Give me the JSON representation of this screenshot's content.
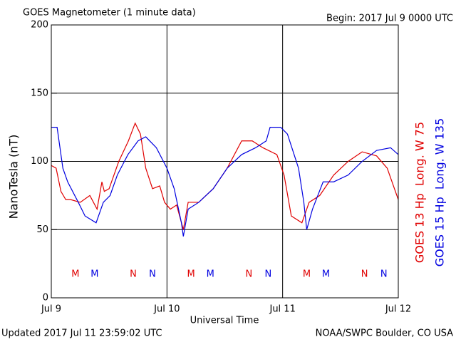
{
  "chart_data": {
    "type": "line",
    "title": "GOES Magnetometer (1 minute data)",
    "subtitle": "Begin:  2017 Jul 9 0000 UTC",
    "x_label": "Universal Time",
    "y_label": "NanoTesla (nT)",
    "footer_left": "Updated 2017 Jul 11 23:59:02 UTC",
    "footer_right": "NOAA/SWPC Boulder, CO USA",
    "xlim": [
      0,
      72
    ],
    "xticks": [
      {
        "value": 0,
        "label": "Jul 9"
      },
      {
        "value": 24,
        "label": "Jul 10"
      },
      {
        "value": 48,
        "label": "Jul 11"
      },
      {
        "value": 72,
        "label": "Jul 12"
      }
    ],
    "ylim": [
      0,
      200
    ],
    "yticks": [
      0,
      50,
      100,
      150,
      200
    ],
    "grid": true,
    "series": [
      {
        "name": "GOES 13 Hp  Long. W 75",
        "color": "#e00000",
        "x": [
          0,
          1,
          2,
          3,
          4,
          6,
          8,
          9.5,
          10.5,
          11,
          12,
          14,
          16,
          17.4,
          18.5,
          19.6,
          21,
          22.5,
          23.5,
          24.7,
          26,
          27.4,
          28.4,
          30.6,
          33.6,
          36.5,
          39.5,
          41.7,
          43.9,
          46.8,
          48.3,
          49.8,
          52,
          53.5,
          55.7,
          58.6,
          61.6,
          64.5,
          67.5,
          69.7,
          72
        ],
        "values": [
          97,
          95,
          78,
          72,
          72,
          70,
          75,
          65,
          85,
          78,
          80,
          100,
          115,
          128,
          120,
          95,
          80,
          82,
          70,
          65,
          68,
          50,
          70,
          70,
          80,
          95,
          115,
          115,
          110,
          105,
          90,
          60,
          55,
          70,
          75,
          90,
          100,
          107,
          104,
          95,
          72
        ]
      },
      {
        "name": "GOES 15 Hp  Long. W 135",
        "color": "#0000e0",
        "x": [
          0,
          1.2,
          2.4,
          3.4,
          5.6,
          7,
          9.3,
          10.8,
          12.2,
          13.7,
          15.9,
          18,
          19.6,
          21.8,
          24,
          25.5,
          27,
          27.4,
          28.4,
          30.6,
          33.6,
          36.5,
          39.5,
          42.4,
          44.6,
          45.4,
          47.6,
          49,
          51.3,
          52.4,
          53,
          54.2,
          56.4,
          58.6,
          61.6,
          64.5,
          67.5,
          70.4,
          72
        ],
        "values": [
          125,
          125,
          95,
          85,
          70,
          60,
          55,
          70,
          75,
          90,
          105,
          115,
          118,
          110,
          95,
          80,
          55,
          45,
          65,
          70,
          80,
          95,
          105,
          110,
          115,
          125,
          125,
          120,
          95,
          70,
          50,
          65,
          85,
          85,
          90,
          100,
          108,
          110,
          105
        ]
      }
    ],
    "markers": [
      {
        "label": "M",
        "x": 5,
        "color": "#e00000"
      },
      {
        "label": "M",
        "x": 9,
        "color": "#0000e0"
      },
      {
        "label": "N",
        "x": 17,
        "color": "#e00000"
      },
      {
        "label": "N",
        "x": 21,
        "color": "#0000e0"
      },
      {
        "label": "M",
        "x": 29,
        "color": "#e00000"
      },
      {
        "label": "M",
        "x": 33,
        "color": "#0000e0"
      },
      {
        "label": "N",
        "x": 41,
        "color": "#e00000"
      },
      {
        "label": "N",
        "x": 45,
        "color": "#0000e0"
      },
      {
        "label": "M",
        "x": 53,
        "color": "#e00000"
      },
      {
        "label": "M",
        "x": 57,
        "color": "#0000e0"
      },
      {
        "label": "N",
        "x": 65,
        "color": "#e00000"
      },
      {
        "label": "N",
        "x": 69,
        "color": "#0000e0"
      }
    ]
  }
}
